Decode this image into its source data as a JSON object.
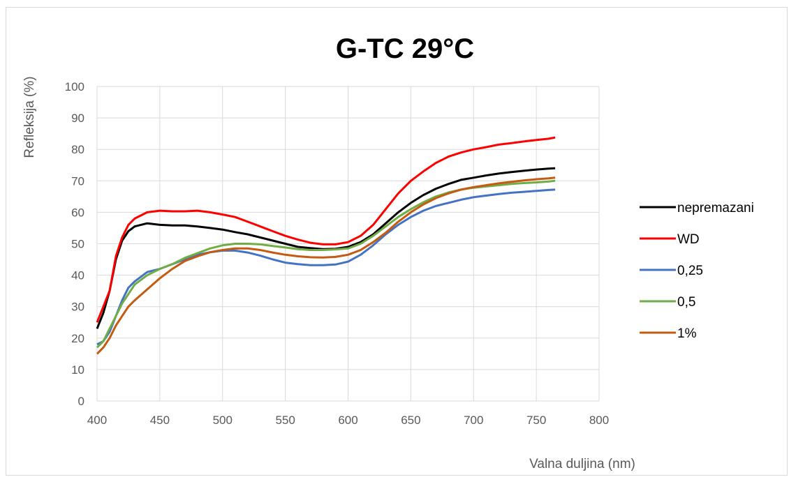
{
  "chart_data": {
    "type": "line",
    "title": "G-TC  29°C",
    "xlabel": "Valna duljina (nm)",
    "ylabel": "Refleksija (%)",
    "xlim": [
      400,
      800
    ],
    "ylim": [
      0,
      100
    ],
    "xticks": [
      400,
      450,
      500,
      550,
      600,
      650,
      700,
      750,
      800
    ],
    "yticks": [
      0,
      10,
      20,
      30,
      40,
      50,
      60,
      70,
      80,
      90,
      100
    ],
    "grid": true,
    "legend_position": "right",
    "series": [
      {
        "name": "nepremazani",
        "color": "#000000",
        "x": [
          400,
          405,
          410,
          415,
          420,
          425,
          430,
          440,
          450,
          460,
          470,
          480,
          490,
          500,
          510,
          520,
          530,
          540,
          550,
          560,
          570,
          580,
          590,
          600,
          610,
          620,
          630,
          640,
          650,
          660,
          670,
          680,
          690,
          700,
          710,
          720,
          730,
          740,
          750,
          760,
          765
        ],
        "y": [
          23,
          28,
          35,
          45,
          51,
          54,
          55.5,
          56.5,
          56,
          55.8,
          55.8,
          55.5,
          55,
          54.5,
          53.7,
          53,
          52,
          51,
          50,
          49,
          48.6,
          48.3,
          48.4,
          49,
          50.5,
          53,
          56.5,
          60,
          63,
          65.5,
          67.5,
          69,
          70.3,
          71,
          71.7,
          72.3,
          72.8,
          73.2,
          73.6,
          73.9,
          74
        ]
      },
      {
        "name": "WD",
        "color": "#ff0000",
        "x": [
          400,
          405,
          410,
          415,
          420,
          425,
          430,
          440,
          450,
          460,
          470,
          480,
          490,
          500,
          510,
          520,
          530,
          540,
          550,
          560,
          570,
          580,
          590,
          600,
          610,
          620,
          630,
          640,
          650,
          660,
          670,
          680,
          690,
          700,
          710,
          720,
          730,
          740,
          750,
          760,
          765
        ],
        "y": [
          25,
          30,
          35,
          46,
          52,
          56,
          58,
          60,
          60.5,
          60.3,
          60.3,
          60.5,
          60,
          59.3,
          58.5,
          57,
          55.5,
          54,
          52.5,
          51.3,
          50.3,
          49.8,
          49.8,
          50.5,
          52.5,
          56,
          61,
          66,
          70,
          73,
          75.7,
          77.7,
          79,
          80,
          80.7,
          81.5,
          82,
          82.5,
          83,
          83.4,
          83.8
        ]
      },
      {
        "name": "0,25",
        "color": "#4472c4",
        "x": [
          400,
          405,
          410,
          415,
          420,
          425,
          430,
          440,
          450,
          460,
          470,
          480,
          490,
          500,
          510,
          520,
          530,
          540,
          550,
          560,
          570,
          580,
          590,
          600,
          610,
          620,
          630,
          640,
          650,
          660,
          670,
          680,
          690,
          700,
          710,
          720,
          730,
          740,
          750,
          760,
          765
        ],
        "y": [
          18,
          19,
          22,
          27,
          32,
          36,
          38,
          41,
          42,
          43.5,
          45,
          46.5,
          47.3,
          47.8,
          47.8,
          47.2,
          46.2,
          45,
          44,
          43.5,
          43.2,
          43.2,
          43.4,
          44.3,
          46.5,
          49.5,
          53,
          56,
          58.5,
          60.5,
          62,
          63,
          64,
          64.8,
          65.3,
          65.8,
          66.2,
          66.5,
          66.8,
          67.1,
          67.2
        ]
      },
      {
        "name": "0,5",
        "color": "#70ad47",
        "x": [
          400,
          405,
          410,
          415,
          420,
          425,
          430,
          440,
          450,
          460,
          470,
          480,
          490,
          500,
          510,
          520,
          530,
          540,
          550,
          560,
          570,
          580,
          590,
          600,
          610,
          620,
          630,
          640,
          650,
          660,
          670,
          680,
          690,
          700,
          710,
          720,
          730,
          740,
          750,
          760,
          765
        ],
        "y": [
          17,
          19,
          23,
          27,
          31,
          34,
          37,
          40,
          42,
          43.5,
          45.5,
          47,
          48.5,
          49.5,
          50,
          50,
          49.8,
          49.3,
          48.8,
          48.3,
          48,
          48,
          48.2,
          48.5,
          50,
          52.5,
          55.5,
          58.5,
          61,
          63.2,
          65,
          66.3,
          67.2,
          67.8,
          68.2,
          68.6,
          69,
          69.3,
          69.5,
          69.8,
          70
        ]
      },
      {
        "name": "1%",
        "color": "#c55a11",
        "x": [
          400,
          405,
          410,
          415,
          420,
          425,
          430,
          440,
          450,
          460,
          470,
          480,
          490,
          500,
          510,
          520,
          530,
          540,
          550,
          560,
          570,
          580,
          590,
          600,
          610,
          620,
          630,
          640,
          650,
          660,
          670,
          680,
          690,
          700,
          710,
          720,
          730,
          740,
          750,
          760,
          765
        ],
        "y": [
          15,
          17,
          20,
          24,
          27,
          30,
          32,
          35.5,
          39,
          42,
          44.5,
          46,
          47.3,
          48,
          48.5,
          48.5,
          48,
          47.2,
          46.5,
          46,
          45.7,
          45.6,
          45.8,
          46.5,
          48,
          50.5,
          53.5,
          57,
          60,
          62.5,
          64.5,
          66,
          67.2,
          68,
          68.6,
          69.2,
          69.7,
          70.1,
          70.5,
          70.8,
          71
        ]
      }
    ]
  }
}
